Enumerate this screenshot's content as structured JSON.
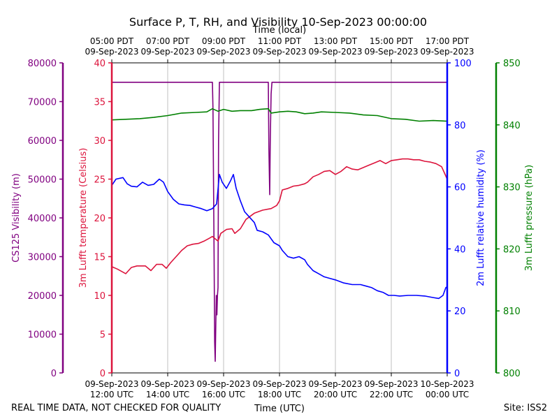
{
  "chart_data": {
    "type": "line",
    "title": "Surface P, T, RH, and Visibility 10-Sep-2023 00:00:00",
    "xlabel_bottom": "Time (UTC)",
    "xlabel_top": "Time (local)",
    "x_ticks_utc": [
      {
        "date": "09-Sep-2023",
        "time": "12:00 UTC",
        "hour": 12
      },
      {
        "date": "09-Sep-2023",
        "time": "14:00 UTC",
        "hour": 14
      },
      {
        "date": "09-Sep-2023",
        "time": "16:00 UTC",
        "hour": 16
      },
      {
        "date": "09-Sep-2023",
        "time": "18:00 UTC",
        "hour": 18
      },
      {
        "date": "09-Sep-2023",
        "time": "20:00 UTC",
        "hour": 20
      },
      {
        "date": "09-Sep-2023",
        "time": "22:00 UTC",
        "hour": 22
      },
      {
        "date": "10-Sep-2023",
        "time": "00:00 UTC",
        "hour": 24
      }
    ],
    "x_ticks_local": [
      {
        "time": "05:00 PDT",
        "date": "09-Sep-2023",
        "hour": 12
      },
      {
        "time": "07:00 PDT",
        "date": "09-Sep-2023",
        "hour": 14
      },
      {
        "time": "09:00 PDT",
        "date": "09-Sep-2023",
        "hour": 16
      },
      {
        "time": "11:00 PDT",
        "date": "09-Sep-2023",
        "hour": 18
      },
      {
        "time": "13:00 PDT",
        "date": "09-Sep-2023",
        "hour": 20
      },
      {
        "time": "15:00 PDT",
        "date": "09-Sep-2023",
        "hour": 22
      },
      {
        "time": "17:00 PDT",
        "date": "09-Sep-2023",
        "hour": 24
      }
    ],
    "xlim_hours_utc": [
      12,
      24
    ],
    "grid": "vertical",
    "axes": {
      "visibility": {
        "label": "CS125 Visibility (m)",
        "ylim": [
          0,
          80000
        ],
        "ticks": [
          0,
          10000,
          20000,
          30000,
          40000,
          50000,
          60000,
          70000,
          80000
        ],
        "color": "#800080"
      },
      "temperature": {
        "label": "3m Lufft temperature (Celsius)",
        "ylim": [
          0,
          40
        ],
        "ticks": [
          0,
          5,
          10,
          15,
          20,
          25,
          30,
          35,
          40
        ],
        "color": "#dc143c"
      },
      "humidity": {
        "label": "2m Lufft relative humidity (%)",
        "ylim": [
          0,
          100
        ],
        "ticks": [
          0,
          20,
          40,
          60,
          80,
          100
        ],
        "color": "#0000ff"
      },
      "pressure": {
        "label": "3m Lufft pressure (hPa)",
        "ylim": [
          800,
          850
        ],
        "ticks": [
          800,
          810,
          820,
          830,
          840,
          850
        ],
        "color": "#008000"
      }
    },
    "series": [
      {
        "axis": "visibility",
        "color": "#800080",
        "points": [
          [
            12.0,
            75000
          ],
          [
            15.6,
            75000
          ],
          [
            15.62,
            68000
          ],
          [
            15.66,
            30000
          ],
          [
            15.68,
            8000
          ],
          [
            15.7,
            3000
          ],
          [
            15.72,
            12000
          ],
          [
            15.74,
            20000
          ],
          [
            15.76,
            15000
          ],
          [
            15.78,
            20000
          ],
          [
            15.8,
            22000
          ],
          [
            15.82,
            60000
          ],
          [
            15.85,
            75000
          ],
          [
            17.6,
            75000
          ],
          [
            17.62,
            58000
          ],
          [
            17.65,
            46000
          ],
          [
            17.67,
            60000
          ],
          [
            17.7,
            72000
          ],
          [
            17.73,
            75000
          ],
          [
            24.0,
            75000
          ]
        ]
      },
      {
        "axis": "temperature",
        "color": "#dc143c",
        "points": [
          [
            12.0,
            13.7
          ],
          [
            12.2,
            13.4
          ],
          [
            12.5,
            12.8
          ],
          [
            12.7,
            13.6
          ],
          [
            12.9,
            13.8
          ],
          [
            13.2,
            13.8
          ],
          [
            13.4,
            13.2
          ],
          [
            13.6,
            14.0
          ],
          [
            13.8,
            14.0
          ],
          [
            13.95,
            13.5
          ],
          [
            14.1,
            14.2
          ],
          [
            14.3,
            15.0
          ],
          [
            14.5,
            15.8
          ],
          [
            14.7,
            16.4
          ],
          [
            14.9,
            16.6
          ],
          [
            15.1,
            16.7
          ],
          [
            15.3,
            17.0
          ],
          [
            15.5,
            17.4
          ],
          [
            15.6,
            17.6
          ],
          [
            15.7,
            17.3
          ],
          [
            15.8,
            17.0
          ],
          [
            15.9,
            18.0
          ],
          [
            16.1,
            18.5
          ],
          [
            16.3,
            18.6
          ],
          [
            16.4,
            18.0
          ],
          [
            16.6,
            18.6
          ],
          [
            16.8,
            19.8
          ],
          [
            17.1,
            20.6
          ],
          [
            17.4,
            21.0
          ],
          [
            17.7,
            21.2
          ],
          [
            17.9,
            21.6
          ],
          [
            18.0,
            22.2
          ],
          [
            18.1,
            23.6
          ],
          [
            18.3,
            23.8
          ],
          [
            18.5,
            24.1
          ],
          [
            18.7,
            24.2
          ],
          [
            18.9,
            24.4
          ],
          [
            19.0,
            24.6
          ],
          [
            19.2,
            25.3
          ],
          [
            19.4,
            25.6
          ],
          [
            19.6,
            26.0
          ],
          [
            19.8,
            26.1
          ],
          [
            20.0,
            25.6
          ],
          [
            20.2,
            26.0
          ],
          [
            20.4,
            26.6
          ],
          [
            20.6,
            26.3
          ],
          [
            20.8,
            26.2
          ],
          [
            21.0,
            26.5
          ],
          [
            21.2,
            26.8
          ],
          [
            21.4,
            27.1
          ],
          [
            21.6,
            27.4
          ],
          [
            21.8,
            27.0
          ],
          [
            22.0,
            27.4
          ],
          [
            22.2,
            27.5
          ],
          [
            22.4,
            27.6
          ],
          [
            22.6,
            27.6
          ],
          [
            22.8,
            27.5
          ],
          [
            23.0,
            27.5
          ],
          [
            23.2,
            27.3
          ],
          [
            23.4,
            27.2
          ],
          [
            23.6,
            27.0
          ],
          [
            23.8,
            26.6
          ],
          [
            24.0,
            25.0
          ]
        ]
      },
      {
        "axis": "humidity",
        "color": "#0000ff",
        "points": [
          [
            12.0,
            60.5
          ],
          [
            12.15,
            62.5
          ],
          [
            12.4,
            63.0
          ],
          [
            12.55,
            61.0
          ],
          [
            12.7,
            60.2
          ],
          [
            12.9,
            60.0
          ],
          [
            13.1,
            61.5
          ],
          [
            13.3,
            60.5
          ],
          [
            13.5,
            60.8
          ],
          [
            13.7,
            62.5
          ],
          [
            13.85,
            61.5
          ],
          [
            14.0,
            58.5
          ],
          [
            14.2,
            56.0
          ],
          [
            14.4,
            54.5
          ],
          [
            14.6,
            54.2
          ],
          [
            14.8,
            54.0
          ],
          [
            15.0,
            53.5
          ],
          [
            15.2,
            53.0
          ],
          [
            15.4,
            52.3
          ],
          [
            15.6,
            53.0
          ],
          [
            15.75,
            54.5
          ],
          [
            15.85,
            64.0
          ],
          [
            15.95,
            61.5
          ],
          [
            16.1,
            59.5
          ],
          [
            16.25,
            62.0
          ],
          [
            16.35,
            64.0
          ],
          [
            16.45,
            59.5
          ],
          [
            16.6,
            55.5
          ],
          [
            16.75,
            52.0
          ],
          [
            16.9,
            50.5
          ],
          [
            17.1,
            48.5
          ],
          [
            17.2,
            46.0
          ],
          [
            17.4,
            45.5
          ],
          [
            17.6,
            44.5
          ],
          [
            17.8,
            42.0
          ],
          [
            18.0,
            41.0
          ],
          [
            18.1,
            39.5
          ],
          [
            18.3,
            37.5
          ],
          [
            18.5,
            37.0
          ],
          [
            18.7,
            37.5
          ],
          [
            18.9,
            36.5
          ],
          [
            19.0,
            35.0
          ],
          [
            19.2,
            33.0
          ],
          [
            19.4,
            32.0
          ],
          [
            19.6,
            31.0
          ],
          [
            19.8,
            30.5
          ],
          [
            20.0,
            30.0
          ],
          [
            20.3,
            29.0
          ],
          [
            20.6,
            28.5
          ],
          [
            20.9,
            28.5
          ],
          [
            21.1,
            28.0
          ],
          [
            21.3,
            27.5
          ],
          [
            21.5,
            26.5
          ],
          [
            21.7,
            26.0
          ],
          [
            21.9,
            25.0
          ],
          [
            22.1,
            25.0
          ],
          [
            22.3,
            24.8
          ],
          [
            22.6,
            25.0
          ],
          [
            22.9,
            25.0
          ],
          [
            23.2,
            24.8
          ],
          [
            23.5,
            24.3
          ],
          [
            23.7,
            24.0
          ],
          [
            23.85,
            25.0
          ],
          [
            23.95,
            27.5
          ],
          [
            24.0,
            27.8
          ]
        ]
      },
      {
        "axis": "pressure",
        "color": "#008000",
        "points": [
          [
            12.0,
            840.8
          ],
          [
            12.5,
            840.9
          ],
          [
            13.0,
            841.0
          ],
          [
            13.5,
            841.2
          ],
          [
            14.0,
            841.5
          ],
          [
            14.5,
            841.9
          ],
          [
            15.0,
            842.0
          ],
          [
            15.4,
            842.1
          ],
          [
            15.6,
            842.6
          ],
          [
            15.8,
            842.2
          ],
          [
            16.0,
            842.5
          ],
          [
            16.3,
            842.2
          ],
          [
            16.6,
            842.3
          ],
          [
            17.0,
            842.3
          ],
          [
            17.3,
            842.5
          ],
          [
            17.6,
            842.6
          ],
          [
            17.7,
            841.9
          ],
          [
            18.0,
            842.1
          ],
          [
            18.3,
            842.2
          ],
          [
            18.6,
            842.1
          ],
          [
            18.9,
            841.8
          ],
          [
            19.2,
            841.9
          ],
          [
            19.5,
            842.1
          ],
          [
            20.0,
            842.0
          ],
          [
            20.5,
            841.9
          ],
          [
            21.0,
            841.6
          ],
          [
            21.5,
            841.5
          ],
          [
            22.0,
            841.0
          ],
          [
            22.5,
            840.9
          ],
          [
            23.0,
            840.6
          ],
          [
            23.5,
            840.7
          ],
          [
            24.0,
            840.6
          ]
        ]
      }
    ]
  },
  "footer": {
    "left": "REAL TIME DATA, NOT CHECKED FOR QUALITY",
    "right": "Site: ISS2"
  }
}
